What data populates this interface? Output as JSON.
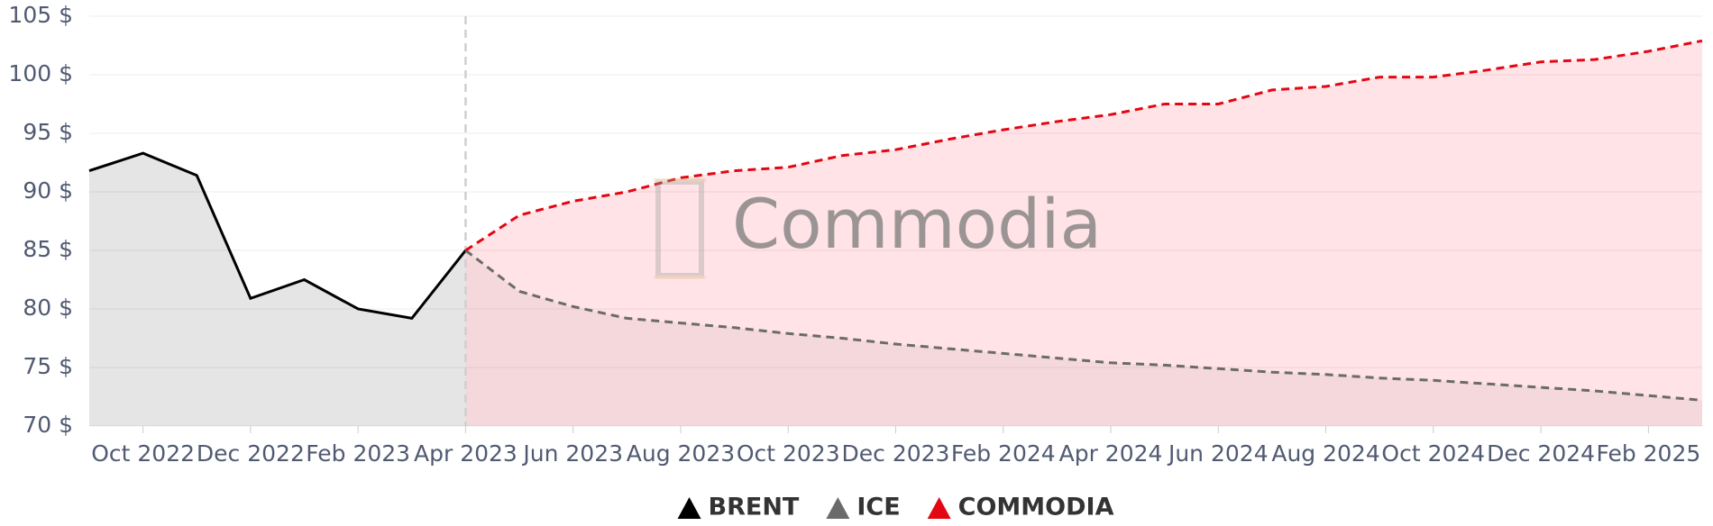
{
  "chart_data": {
    "type": "line",
    "watermark": "Commodia",
    "x": [
      "2022-09",
      "2022-10",
      "2022-11",
      "2022-12",
      "2023-01",
      "2023-02",
      "2023-03",
      "2023-04",
      "2023-05",
      "2023-06",
      "2023-07",
      "2023-08",
      "2023-09",
      "2023-10",
      "2023-11",
      "2023-12",
      "2024-01",
      "2024-02",
      "2024-03",
      "2024-04",
      "2024-05",
      "2024-06",
      "2024-07",
      "2024-08",
      "2024-09",
      "2024-10",
      "2024-11",
      "2024-12",
      "2025-01",
      "2025-02",
      "2025-03"
    ],
    "series": [
      {
        "name": "BRENT",
        "color": "#000000",
        "fill": "rgba(0,0,0,0.10)",
        "dash": false,
        "values": [
          91.8,
          93.3,
          91.4,
          80.9,
          82.5,
          80.0,
          79.2,
          85.0,
          null,
          null,
          null,
          null,
          null,
          null,
          null,
          null,
          null,
          null,
          null,
          null,
          null,
          null,
          null,
          null,
          null,
          null,
          null,
          null,
          null,
          null,
          null
        ]
      },
      {
        "name": "ICE",
        "color": "#6b6b6b",
        "fill": "rgba(90,90,90,0.07)",
        "dash": true,
        "values": [
          null,
          null,
          null,
          null,
          null,
          null,
          null,
          85.0,
          81.5,
          80.2,
          79.2,
          78.8,
          78.4,
          77.9,
          77.5,
          77.0,
          76.6,
          76.2,
          75.8,
          75.4,
          75.2,
          74.9,
          74.6,
          74.4,
          74.1,
          73.9,
          73.6,
          73.3,
          73.0,
          72.6,
          72.2
        ]
      },
      {
        "name": "COMMODIA",
        "color": "#e30613",
        "fill": "rgba(255,40,60,0.13)",
        "dash": true,
        "values": [
          null,
          null,
          null,
          null,
          null,
          null,
          null,
          85.0,
          88.0,
          89.2,
          90.0,
          91.2,
          91.8,
          92.1,
          93.1,
          93.6,
          94.5,
          95.3,
          96.0,
          96.6,
          97.5,
          97.5,
          98.7,
          99.0,
          99.8,
          99.8,
          100.4,
          101.1,
          101.3,
          102.0,
          102.9
        ]
      }
    ],
    "xlim": [
      "2022-09",
      "2025-03"
    ],
    "xticks": [
      {
        "value": "2022-10",
        "label": "Oct 2022"
      },
      {
        "value": "2022-12",
        "label": "Dec 2022"
      },
      {
        "value": "2023-02",
        "label": "Feb 2023"
      },
      {
        "value": "2023-04",
        "label": "Apr 2023"
      },
      {
        "value": "2023-06",
        "label": "Jun 2023"
      },
      {
        "value": "2023-08",
        "label": "Aug 2023"
      },
      {
        "value": "2023-10",
        "label": "Oct 2023"
      },
      {
        "value": "2023-12",
        "label": "Dec 2023"
      },
      {
        "value": "2024-02",
        "label": "Feb 2024"
      },
      {
        "value": "2024-04",
        "label": "Apr 2024"
      },
      {
        "value": "2024-06",
        "label": "Jun 2024"
      },
      {
        "value": "2024-08",
        "label": "Aug 2024"
      },
      {
        "value": "2024-10",
        "label": "Oct 2024"
      },
      {
        "value": "2024-12",
        "label": "Dec 2024"
      },
      {
        "value": "2025-02",
        "label": "Feb 2025"
      }
    ],
    "ylim": [
      70,
      105
    ],
    "yticks": [
      {
        "value": 70,
        "label": "70 $"
      },
      {
        "value": 75,
        "label": "75 $"
      },
      {
        "value": 80,
        "label": "80 $"
      },
      {
        "value": 85,
        "label": "85 $"
      },
      {
        "value": 90,
        "label": "90 $"
      },
      {
        "value": 95,
        "label": "95 $"
      },
      {
        "value": 100,
        "label": "100 $"
      },
      {
        "value": 105,
        "label": "105 $"
      }
    ],
    "vline": "2023-04",
    "grid": true,
    "legend": "bottom"
  }
}
